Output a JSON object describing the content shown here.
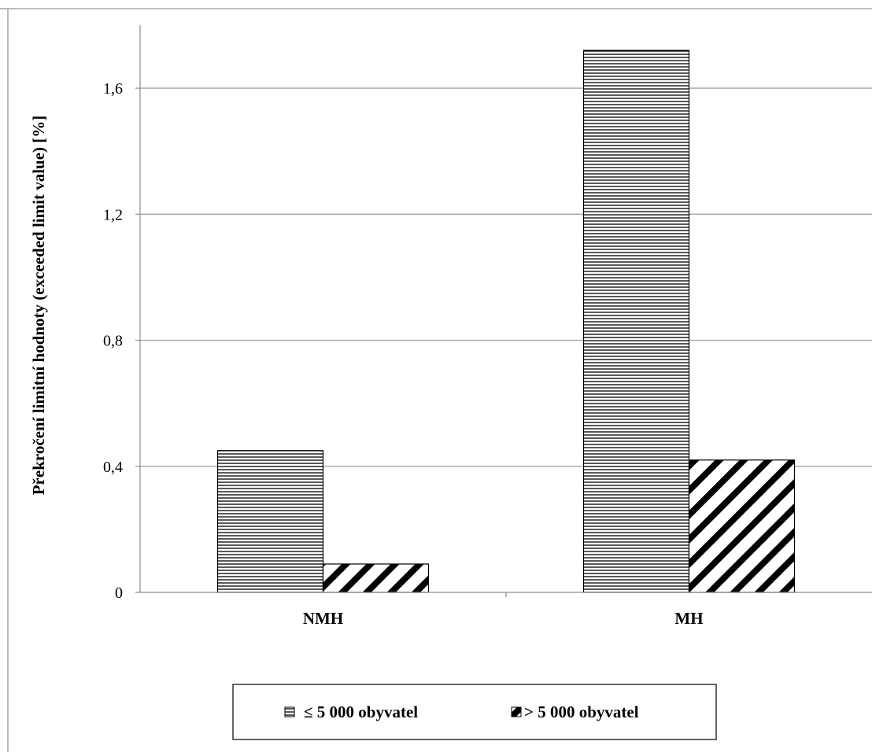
{
  "chart_data": {
    "type": "bar",
    "title": "",
    "xlabel": "",
    "ylabel": "Překročení limitní hodnoty (exceeded limit value) [%]",
    "categories": [
      "NMH",
      "MH"
    ],
    "series": [
      {
        "name": "≤ 5 000 obyvatel",
        "values": [
          0.45,
          1.72
        ],
        "pattern": "horizontal"
      },
      {
        "name": "> 5 000 obyvatel",
        "values": [
          0.09,
          0.42
        ],
        "pattern": "diagonal"
      }
    ],
    "ylim": [
      0,
      1.8
    ],
    "yticks": [
      0,
      0.4,
      0.8,
      1.2,
      1.6
    ],
    "ytick_labels": [
      "0",
      "0,4",
      "0,8",
      "1,2",
      "1,6"
    ],
    "grid": true,
    "legend_position": "bottom",
    "colors": {
      "bar_stroke": "#000000",
      "bar_fill": "#ffffff",
      "grid": "#a6a6a6",
      "axis": "#8c8c8c",
      "frame": "#a6a6a6"
    }
  }
}
